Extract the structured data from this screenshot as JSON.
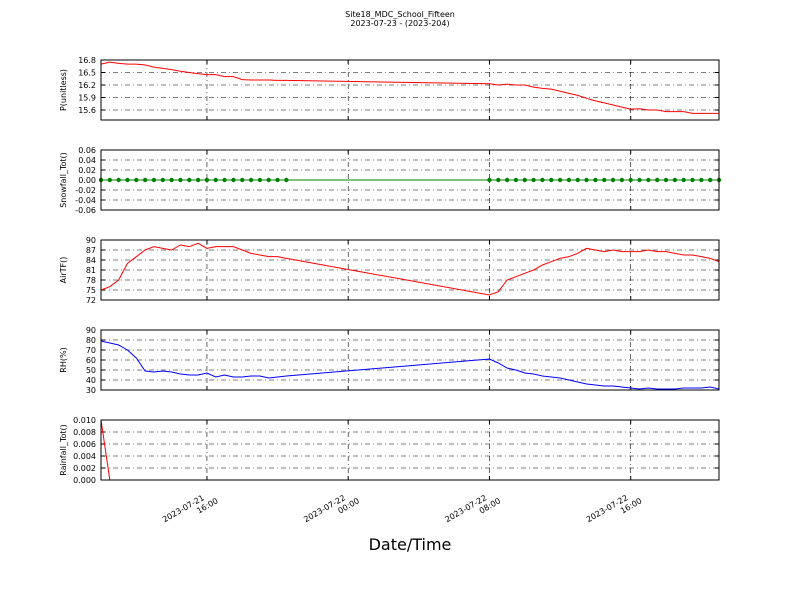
{
  "chart_data": [
    {
      "type": "line",
      "title": "Site18_MDC_School_Fifteen",
      "subtitle": "2023-07-23 - (2023-204)",
      "ylabel": "P(unitless)",
      "color": "#ff0000",
      "x": [
        "2023-07-21 10:00",
        "2023-07-21 10:30",
        "2023-07-21 11:00",
        "2023-07-21 11:30",
        "2023-07-21 12:00",
        "2023-07-21 12:30",
        "2023-07-21 13:00",
        "2023-07-21 13:30",
        "2023-07-21 14:00",
        "2023-07-21 14:30",
        "2023-07-21 15:00",
        "2023-07-21 15:30",
        "2023-07-21 16:00",
        "2023-07-21 16:30",
        "2023-07-21 17:00",
        "2023-07-21 17:30",
        "2023-07-21 18:00",
        "2023-07-21 18:30",
        "2023-07-21 19:00",
        "2023-07-21 19:30",
        "2023-07-21 20:00",
        "2023-07-21 20:30",
        "2023-07-22 08:00",
        "2023-07-22 08:30",
        "2023-07-22 09:00",
        "2023-07-22 09:30",
        "2023-07-22 10:00",
        "2023-07-22 10:30",
        "2023-07-22 11:00",
        "2023-07-22 11:30",
        "2023-07-22 12:00",
        "2023-07-22 12:30",
        "2023-07-22 13:00",
        "2023-07-22 13:30",
        "2023-07-22 14:00",
        "2023-07-22 14:30",
        "2023-07-22 15:00",
        "2023-07-22 15:30",
        "2023-07-22 16:00",
        "2023-07-22 16:30",
        "2023-07-22 17:00",
        "2023-07-22 17:30",
        "2023-07-22 18:00",
        "2023-07-22 18:30",
        "2023-07-22 19:00",
        "2023-07-22 19:30",
        "2023-07-22 20:00",
        "2023-07-22 20:30",
        "2023-07-22 21:00"
      ],
      "values": [
        16.7,
        16.75,
        16.72,
        16.7,
        16.7,
        16.68,
        16.63,
        16.6,
        16.57,
        16.53,
        16.5,
        16.47,
        16.45,
        16.45,
        16.4,
        16.4,
        16.33,
        16.32,
        16.32,
        16.32,
        16.31,
        16.31,
        16.23,
        16.2,
        16.22,
        16.2,
        16.2,
        16.15,
        16.12,
        16.1,
        16.05,
        16.0,
        15.95,
        15.88,
        15.82,
        15.77,
        15.72,
        15.67,
        15.62,
        15.63,
        15.6,
        15.6,
        15.56,
        15.56,
        15.56,
        15.52,
        15.52,
        15.52,
        15.52
      ],
      "ylim": [
        15.36,
        16.8
      ],
      "yticks": [
        15.6,
        15.9,
        16.2,
        16.5,
        16.8
      ],
      "grid": true
    },
    {
      "type": "line",
      "ylabel": "Snowfall_Tot()",
      "color": "#008000",
      "marker": "o",
      "x": [
        "2023-07-21 10:00",
        "2023-07-21 10:30",
        "2023-07-21 11:00",
        "2023-07-21 11:30",
        "2023-07-21 12:00",
        "2023-07-21 12:30",
        "2023-07-21 13:00",
        "2023-07-21 13:30",
        "2023-07-21 14:00",
        "2023-07-21 14:30",
        "2023-07-21 15:00",
        "2023-07-21 15:30",
        "2023-07-21 16:00",
        "2023-07-21 16:30",
        "2023-07-21 17:00",
        "2023-07-21 17:30",
        "2023-07-21 18:00",
        "2023-07-21 18:30",
        "2023-07-21 19:00",
        "2023-07-21 19:30",
        "2023-07-21 20:00",
        "2023-07-21 20:30",
        "2023-07-22 08:00",
        "2023-07-22 08:30",
        "2023-07-22 09:00",
        "2023-07-22 09:30",
        "2023-07-22 10:00",
        "2023-07-22 10:30",
        "2023-07-22 11:00",
        "2023-07-22 11:30",
        "2023-07-22 12:00",
        "2023-07-22 12:30",
        "2023-07-22 13:00",
        "2023-07-22 13:30",
        "2023-07-22 14:00",
        "2023-07-22 14:30",
        "2023-07-22 15:00",
        "2023-07-22 15:30",
        "2023-07-22 16:00",
        "2023-07-22 16:30",
        "2023-07-22 17:00",
        "2023-07-22 17:30",
        "2023-07-22 18:00",
        "2023-07-22 18:30",
        "2023-07-22 19:00",
        "2023-07-22 19:30",
        "2023-07-22 20:00",
        "2023-07-22 20:30",
        "2023-07-22 21:00"
      ],
      "values": [
        0,
        0,
        0,
        0,
        0,
        0,
        0,
        0,
        0,
        0,
        0,
        0,
        0,
        0,
        0,
        0,
        0,
        0,
        0,
        0,
        0,
        0,
        0,
        0,
        0,
        0,
        0,
        0,
        0,
        0,
        0,
        0,
        0,
        0,
        0,
        0,
        0,
        0,
        0,
        0,
        0,
        0,
        0,
        0,
        0,
        0,
        0,
        0,
        0
      ],
      "ylim": [
        -0.06,
        0.06
      ],
      "yticks": [
        -0.06,
        -0.04,
        -0.02,
        {
          "value": 0,
          "label": "0.00"
        },
        0.02,
        0.04,
        0.06
      ],
      "grid": true
    },
    {
      "type": "line",
      "ylabel": "AirTF()",
      "color": "#ff0000",
      "x": [
        "2023-07-21 10:00",
        "2023-07-21 10:30",
        "2023-07-21 11:00",
        "2023-07-21 11:30",
        "2023-07-21 12:00",
        "2023-07-21 12:30",
        "2023-07-21 13:00",
        "2023-07-21 13:30",
        "2023-07-21 14:00",
        "2023-07-21 14:30",
        "2023-07-21 15:00",
        "2023-07-21 15:30",
        "2023-07-21 16:00",
        "2023-07-21 16:30",
        "2023-07-21 17:00",
        "2023-07-21 17:30",
        "2023-07-21 18:00",
        "2023-07-21 18:30",
        "2023-07-21 19:00",
        "2023-07-21 19:30",
        "2023-07-21 20:00",
        "2023-07-21 20:30",
        "2023-07-22 08:00",
        "2023-07-22 08:30",
        "2023-07-22 09:00",
        "2023-07-22 09:30",
        "2023-07-22 10:00",
        "2023-07-22 10:30",
        "2023-07-22 11:00",
        "2023-07-22 11:30",
        "2023-07-22 12:00",
        "2023-07-22 12:30",
        "2023-07-22 13:00",
        "2023-07-22 13:30",
        "2023-07-22 14:00",
        "2023-07-22 14:30",
        "2023-07-22 15:00",
        "2023-07-22 15:30",
        "2023-07-22 16:00",
        "2023-07-22 16:30",
        "2023-07-22 17:00",
        "2023-07-22 17:30",
        "2023-07-22 18:00",
        "2023-07-22 18:30",
        "2023-07-22 19:00",
        "2023-07-22 19:30",
        "2023-07-22 20:00",
        "2023-07-22 20:30",
        "2023-07-22 21:00"
      ],
      "values": [
        75,
        76,
        78,
        83,
        85,
        87,
        88,
        87.5,
        87,
        88.5,
        88,
        89,
        87.5,
        88,
        88,
        88,
        87,
        86,
        85.5,
        85,
        85,
        84.5,
        73.5,
        74.5,
        78,
        79,
        80,
        81,
        82.5,
        83.5,
        84.5,
        85,
        86,
        87.5,
        87,
        86.5,
        87,
        86.5,
        86.5,
        86.5,
        87,
        86.5,
        86.5,
        86,
        85.5,
        85.5,
        85,
        84.5,
        83.5
      ],
      "ylim": [
        72,
        90
      ],
      "yticks": [
        72,
        75,
        78,
        81,
        84,
        87,
        90
      ],
      "grid": true
    },
    {
      "type": "line",
      "ylabel": "RH(%)",
      "color": "#0000ff",
      "x": [
        "2023-07-21 10:00",
        "2023-07-21 10:30",
        "2023-07-21 11:00",
        "2023-07-21 11:30",
        "2023-07-21 12:00",
        "2023-07-21 12:30",
        "2023-07-21 13:00",
        "2023-07-21 13:30",
        "2023-07-21 14:00",
        "2023-07-21 14:30",
        "2023-07-21 15:00",
        "2023-07-21 15:30",
        "2023-07-21 16:00",
        "2023-07-21 16:30",
        "2023-07-21 17:00",
        "2023-07-21 17:30",
        "2023-07-21 18:00",
        "2023-07-21 18:30",
        "2023-07-21 19:00",
        "2023-07-21 19:30",
        "2023-07-21 20:00",
        "2023-07-21 20:30",
        "2023-07-22 08:00",
        "2023-07-22 08:30",
        "2023-07-22 09:00",
        "2023-07-22 09:30",
        "2023-07-22 10:00",
        "2023-07-22 10:30",
        "2023-07-22 11:00",
        "2023-07-22 11:30",
        "2023-07-22 12:00",
        "2023-07-22 12:30",
        "2023-07-22 13:00",
        "2023-07-22 13:30",
        "2023-07-22 14:00",
        "2023-07-22 14:30",
        "2023-07-22 15:00",
        "2023-07-22 15:30",
        "2023-07-22 16:00",
        "2023-07-22 16:30",
        "2023-07-22 17:00",
        "2023-07-22 17:30",
        "2023-07-22 18:00",
        "2023-07-22 18:30",
        "2023-07-22 19:00",
        "2023-07-22 19:30",
        "2023-07-22 20:00",
        "2023-07-22 20:30",
        "2023-07-22 21:00"
      ],
      "values": [
        79,
        77,
        75,
        70,
        62,
        49,
        48,
        49,
        48,
        46,
        45,
        45,
        47,
        43,
        45,
        43,
        43,
        44,
        44,
        42,
        43,
        44,
        61,
        57,
        52,
        50,
        47,
        46,
        44,
        43,
        42,
        40,
        38,
        36,
        35,
        34,
        34,
        33,
        32,
        31,
        32,
        31,
        31,
        31,
        32,
        32,
        32,
        33,
        31
      ],
      "ylim": [
        30,
        90
      ],
      "yticks": [
        30,
        40,
        50,
        60,
        70,
        80,
        90
      ],
      "grid": true
    },
    {
      "type": "line",
      "ylabel": "Rainfall_Tot()",
      "xlabel": "Date/Time",
      "color": "#ff0000",
      "x": [
        "2023-07-21 10:00",
        "2023-07-21 10:30",
        "2023-07-21 11:00",
        "2023-07-21 11:30",
        "2023-07-21 12:00",
        "2023-07-21 12:30",
        "2023-07-21 13:00",
        "2023-07-21 13:30",
        "2023-07-21 14:00",
        "2023-07-21 14:30",
        "2023-07-21 15:00",
        "2023-07-21 15:30",
        "2023-07-21 16:00",
        "2023-07-21 16:30",
        "2023-07-21 17:00",
        "2023-07-21 17:30",
        "2023-07-21 18:00",
        "2023-07-21 18:30",
        "2023-07-21 19:00",
        "2023-07-21 19:30",
        "2023-07-21 20:00",
        "2023-07-21 20:30",
        "2023-07-22 08:00",
        "2023-07-22 08:30",
        "2023-07-22 09:00",
        "2023-07-22 09:30",
        "2023-07-22 10:00",
        "2023-07-22 10:30",
        "2023-07-22 11:00",
        "2023-07-22 11:30",
        "2023-07-22 12:00",
        "2023-07-22 12:30",
        "2023-07-22 13:00",
        "2023-07-22 13:30",
        "2023-07-22 14:00",
        "2023-07-22 14:30",
        "2023-07-22 15:00",
        "2023-07-22 15:30",
        "2023-07-22 16:00",
        "2023-07-22 16:30",
        "2023-07-22 17:00",
        "2023-07-22 17:30",
        "2023-07-22 18:00",
        "2023-07-22 18:30",
        "2023-07-22 19:00",
        "2023-07-22 19:30",
        "2023-07-22 20:00",
        "2023-07-22 20:30",
        "2023-07-22 21:00"
      ],
      "values": [
        0.01,
        0,
        0,
        0,
        0,
        0,
        0,
        0,
        0,
        0,
        0,
        0,
        0,
        0,
        0,
        0,
        0,
        0,
        0,
        0,
        0,
        0,
        0,
        0,
        0,
        0,
        0,
        0,
        0,
        0,
        0,
        0,
        0,
        0,
        0,
        0,
        0,
        0,
        0,
        0,
        0,
        0,
        0,
        0,
        0,
        0,
        0,
        0,
        0
      ],
      "ylim": [
        0,
        0.01
      ],
      "yticks": [
        {
          "value": 0,
          "label": "0.000"
        },
        0.002,
        0.004,
        0.006,
        0.008,
        {
          "value": 0.01,
          "label": "0.010"
        }
      ],
      "grid": true,
      "xlim": [
        "2023-07-21 10:00",
        "2023-07-22 21:00"
      ],
      "xticks": [
        "2023-07-21 16:00",
        "2023-07-22 00:00",
        "2023-07-22 08:00",
        "2023-07-22 16:00"
      ]
    }
  ]
}
